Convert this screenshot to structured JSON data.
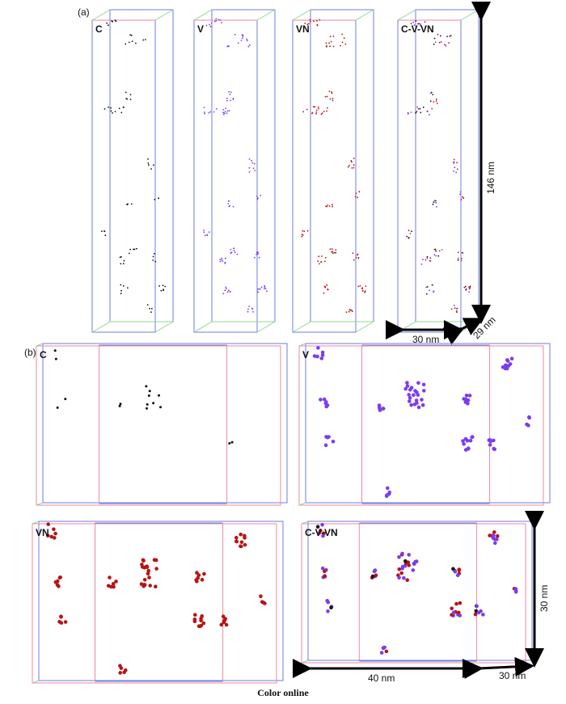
{
  "figure": {
    "panel_a_label": "(a)",
    "panel_b_label": "(b)",
    "caption": "Color online"
  },
  "species": [
    {
      "key": "C",
      "label": "C",
      "color": "#111111"
    },
    {
      "key": "V",
      "label": "V",
      "color": "#7a3cf0"
    },
    {
      "key": "VN",
      "label": "VN",
      "color": "#b81414"
    },
    {
      "key": "CVVN",
      "label": "C-V-VN",
      "color": "#6a1f9a"
    }
  ],
  "panel_a": {
    "columns": [
      {
        "label": "C"
      },
      {
        "label": "V"
      },
      {
        "label": "VN"
      },
      {
        "label": "C-V-VN"
      }
    ],
    "scale": {
      "height": "146 nm",
      "width": "30 nm",
      "depth": "29 nm"
    }
  },
  "panel_b": {
    "views": [
      {
        "label": "C"
      },
      {
        "label": "V"
      },
      {
        "label": "VN"
      },
      {
        "label": "C-V-VN"
      }
    ],
    "scale": {
      "width": "40 nm",
      "depth": "30 nm",
      "height": "30 nm"
    }
  },
  "colors": {
    "box_blue": "#6f7ee0",
    "box_green": "#8fd88f",
    "box_pink": "#e88aa0",
    "arrow": "#000000"
  }
}
